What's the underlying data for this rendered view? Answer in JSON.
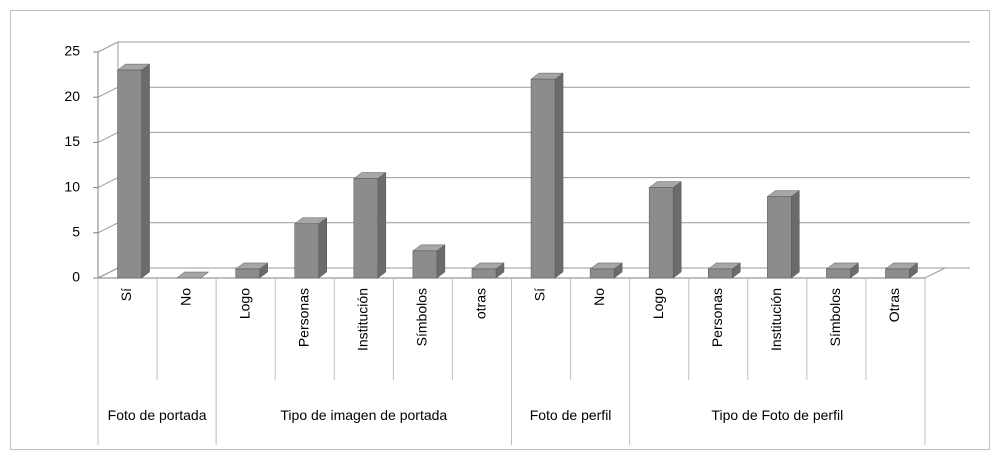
{
  "chart_data": {
    "type": "bar3d",
    "groups": [
      {
        "name": "Foto de portada",
        "categories": [
          "Sí",
          "No"
        ],
        "values": [
          23,
          0
        ]
      },
      {
        "name": "Tipo de imagen de portada",
        "categories": [
          "Logo",
          "Personas",
          "Institución",
          "Símbolos",
          "otras"
        ],
        "values": [
          1,
          6,
          11,
          3,
          1
        ]
      },
      {
        "name": "Foto de perfil",
        "categories": [
          "Sí",
          "No"
        ],
        "values": [
          22,
          1
        ]
      },
      {
        "name": "Tipo de Foto de perfil",
        "categories": [
          "Logo",
          "Personas",
          "Institución",
          "Símbolos",
          "Otras"
        ],
        "values": [
          10,
          1,
          9,
          1,
          1
        ]
      }
    ],
    "color": "#8c8c8c",
    "ylim": [
      0,
      25
    ],
    "yticks": [
      0,
      5,
      10,
      15,
      20,
      25
    ],
    "grid": true
  }
}
